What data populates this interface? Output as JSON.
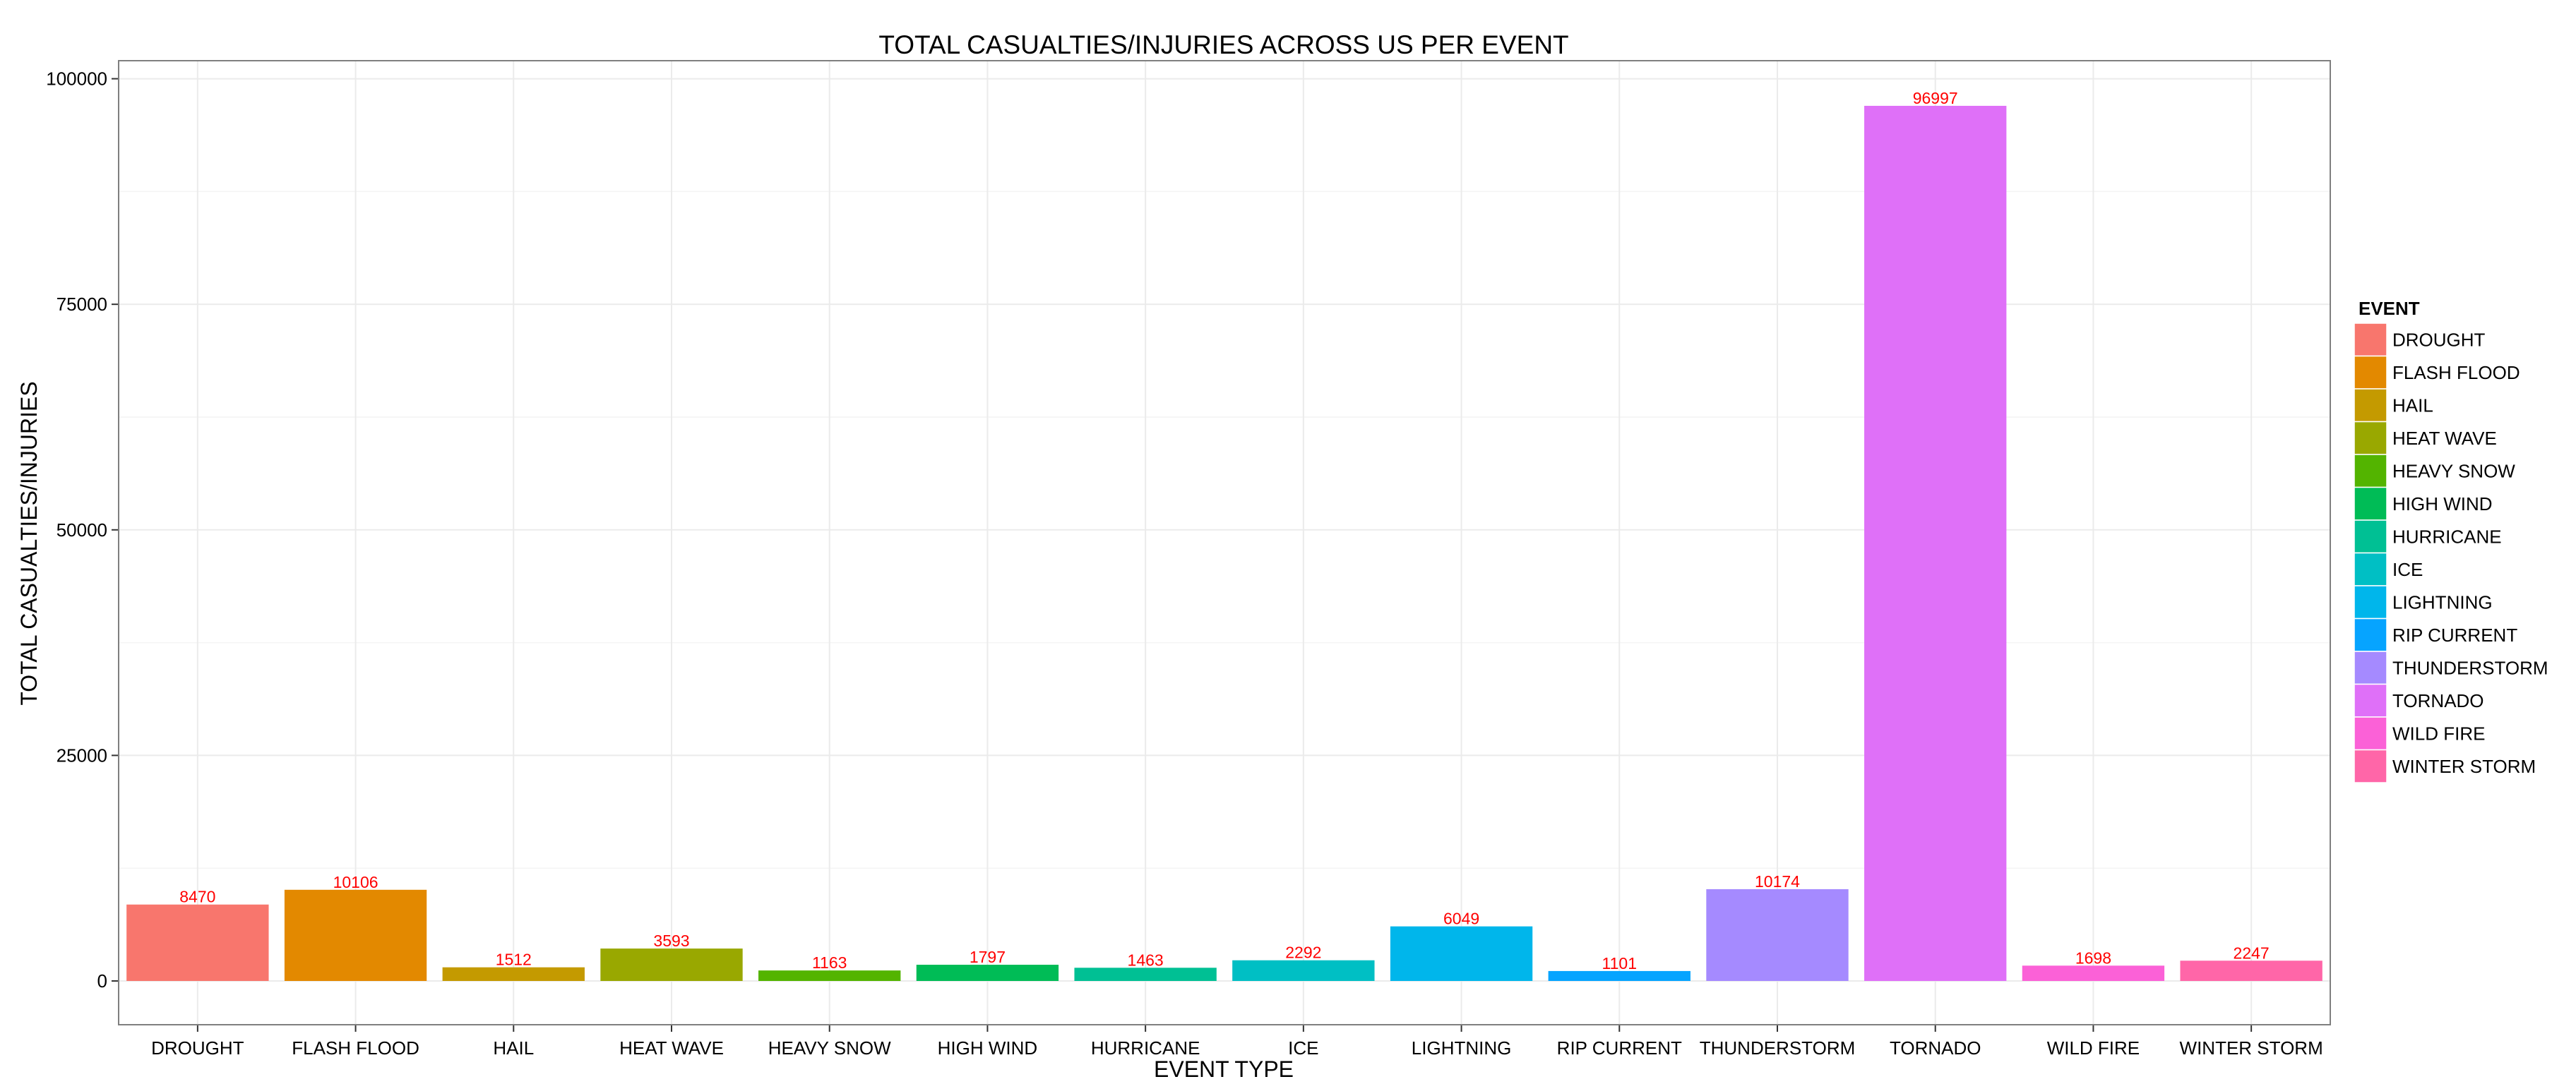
{
  "chart_data": {
    "type": "bar",
    "title": "TOTAL CASUALTIES/INJURIES ACROSS US PER EVENT",
    "xlabel": "EVENT TYPE",
    "ylabel": "TOTAL CASUALTIES/INJURIES",
    "ylim": [
      -4850,
      102000
    ],
    "yticks": [
      0,
      25000,
      50000,
      75000,
      100000
    ],
    "grid": true,
    "legend": {
      "title": "EVENT",
      "position": "right"
    },
    "categories": [
      "DROUGHT",
      "FLASH FLOOD",
      "HAIL",
      "HEAT WAVE",
      "HEAVY SNOW",
      "HIGH WIND",
      "HURRICANE",
      "ICE",
      "LIGHTNING",
      "RIP CURRENT",
      "THUNDERSTORM",
      "TORNADO",
      "WILD FIRE",
      "WINTER STORM"
    ],
    "values": [
      8470,
      10106,
      1512,
      3593,
      1163,
      1797,
      1463,
      2292,
      6049,
      1101,
      10174,
      96997,
      1698,
      2247
    ],
    "value_labels": [
      "8470",
      "10106",
      "1512",
      "3593",
      "1163",
      "1797",
      "1463",
      "2292",
      "6049",
      "1101",
      "10174",
      "96997",
      "1698",
      "2247"
    ],
    "colors": [
      "#F8766D",
      "#E38900",
      "#C49A00",
      "#99A800",
      "#53B400",
      "#00BC56",
      "#00C094",
      "#00BFC4",
      "#00B6EB",
      "#06A4FF",
      "#A58AFF",
      "#DF70F8",
      "#FB61D7",
      "#FF66A8"
    ],
    "label_color": "#FF0000"
  }
}
